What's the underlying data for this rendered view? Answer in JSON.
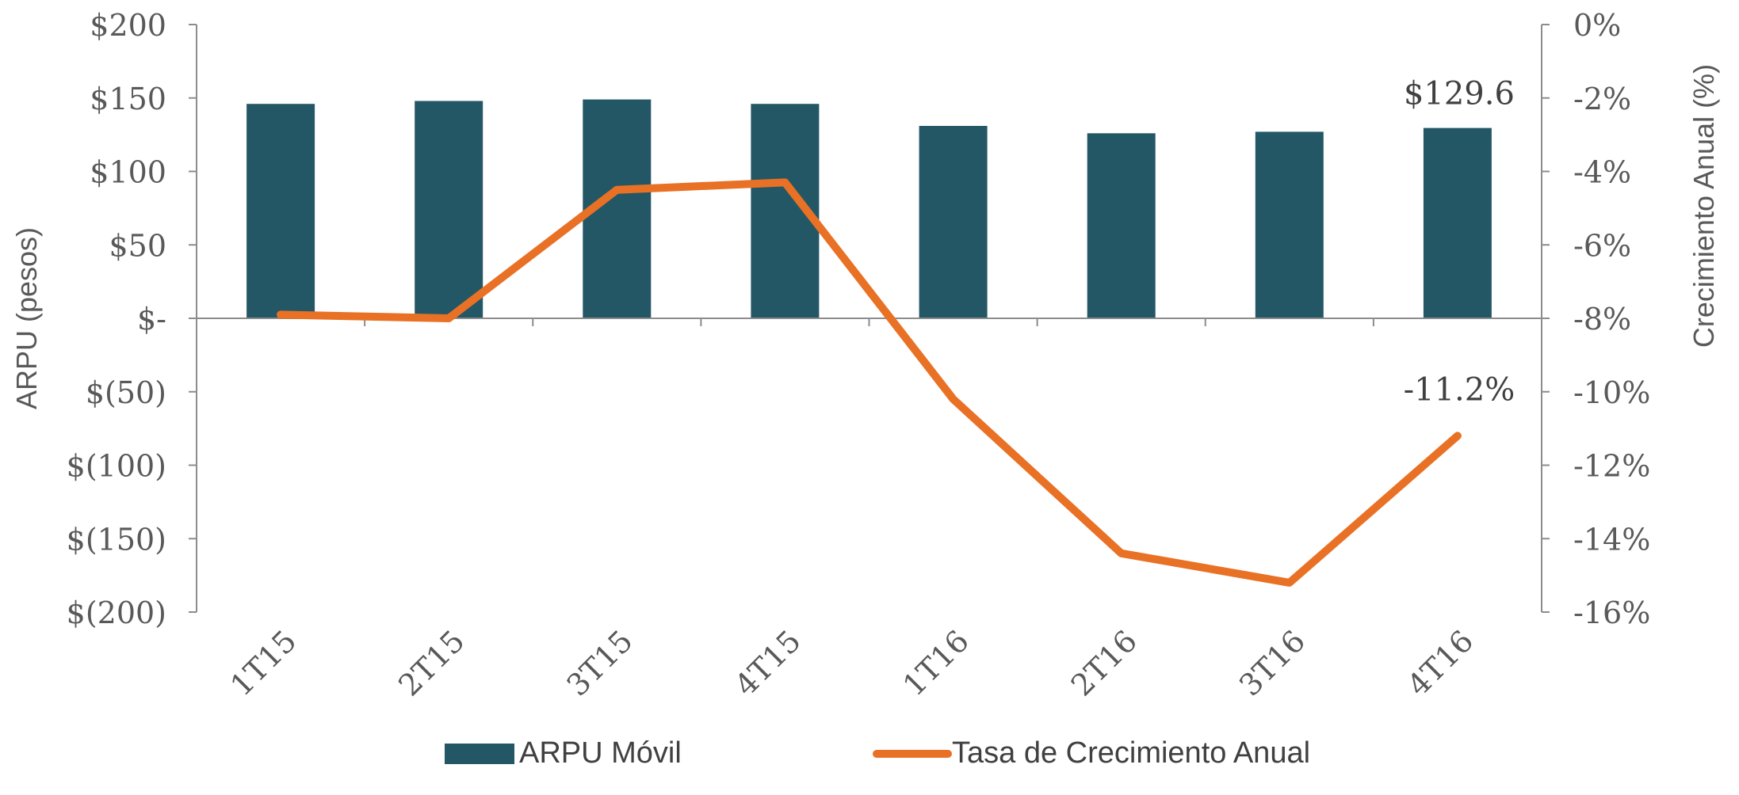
{
  "chart_data": {
    "type": "bar+line",
    "categories": [
      "1T15",
      "2T15",
      "3T15",
      "4T15",
      "1T16",
      "2T16",
      "3T16",
      "4T16"
    ],
    "series": [
      {
        "name": "ARPU Móvil",
        "type": "bar",
        "axis": "left",
        "color": "#245766",
        "values": [
          146,
          148,
          149,
          146,
          131,
          126,
          127,
          129.6
        ]
      },
      {
        "name": "Tasa de Crecimiento Anual",
        "type": "line",
        "axis": "right",
        "color": "#E87125",
        "values": [
          -7.9,
          -8.0,
          -4.5,
          -4.3,
          -10.2,
          -14.4,
          -15.2,
          -11.2
        ]
      }
    ],
    "ylabel": "ARPU (pesos)",
    "y2label": "Crecimiento Anual (%)",
    "ylim": [
      -200,
      200
    ],
    "y2lim": [
      -16,
      0
    ],
    "y_ticks": [
      200,
      150,
      100,
      50,
      0,
      -50,
      -100,
      -150,
      -200
    ],
    "y_tick_labels": [
      "$200",
      "$150",
      "$100",
      "$50",
      "$-",
      "$(50)",
      "$(100)",
      "$(150)",
      "$(200)"
    ],
    "y2_ticks": [
      0,
      -2,
      -4,
      -6,
      -8,
      -10,
      -12,
      -14,
      -16
    ],
    "y2_tick_labels": [
      "0%",
      "-2%",
      "-4%",
      "-6%",
      "-8%",
      "-10%",
      "-12%",
      "-14%",
      "-16%"
    ],
    "annotations": [
      {
        "text": "$129.6",
        "series": 0,
        "index": 7
      },
      {
        "text": "-11.2%",
        "series": 1,
        "index": 7
      }
    ],
    "legend_position": "bottom",
    "grid": false
  }
}
